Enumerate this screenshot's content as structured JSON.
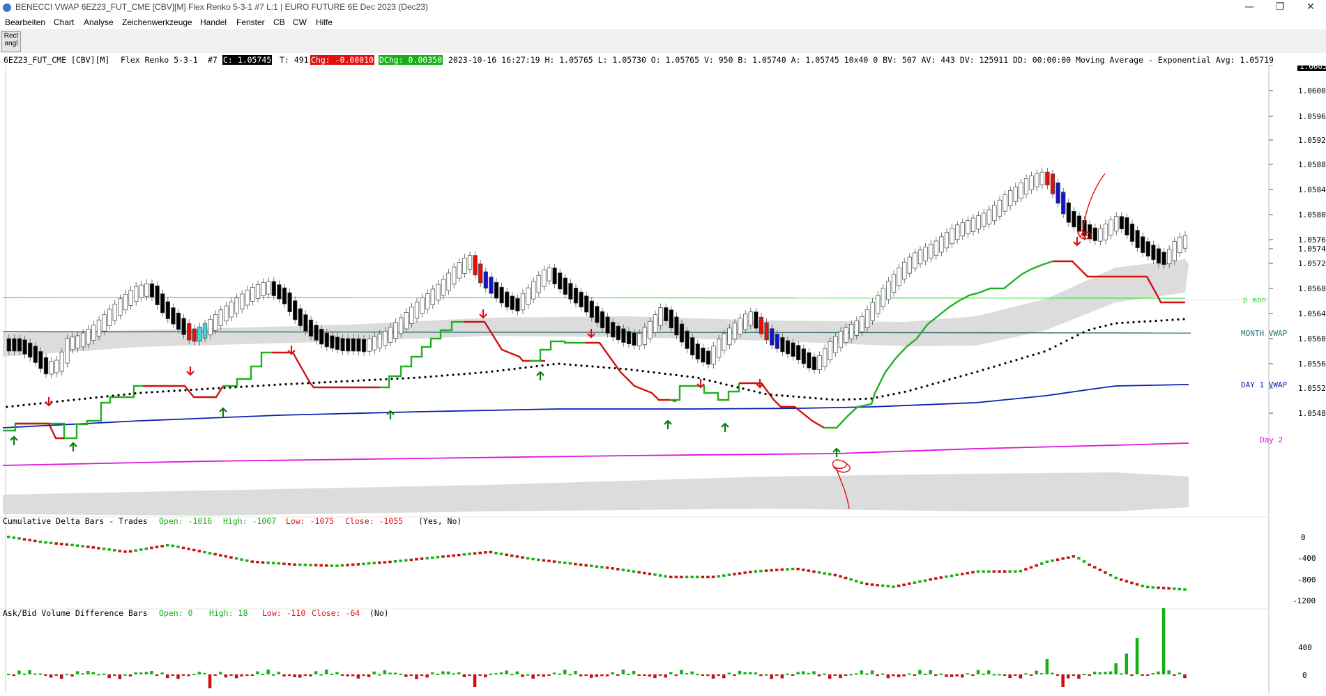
{
  "window": {
    "title": "BENECCI VWAP 6EZ23_FUT_CME [CBV][M]  Flex Renko 5-3-1  #7 L:1 | EURO FUTURE 6E Dec 2023 (Dec23)",
    "minimize_label": "—",
    "restore_label": "❐",
    "close_label": "✕"
  },
  "menu": [
    "Bearbeiten",
    "Chart",
    "Analyse",
    "Zeichenwerkzeuge",
    "Handel",
    "Fenster",
    "CB",
    "CW",
    "Hilfe"
  ],
  "toolbar": {
    "rect_button_label": "Rect\nangl"
  },
  "infobar": {
    "symbol": "6EZ23_FUT_CME [CBV][M]",
    "bar_type": "Flex Renko 5-3-1",
    "number": "#7",
    "close": "C: 1.05745",
    "ticks": "T: 491",
    "chg": "Chg: -0.00010",
    "dchg": "DChg: 0.00350",
    "details": "2023-10-16 16:27:19 H: 1.05765 L: 1.05730 O: 1.05765 V: 950 B: 1.05740 A: 1.05745 10x40 0 BV: 507 AV: 443 DV: 125911 DD: 00:00:00 Moving Average - Exponential  Avg: 1.05719"
  },
  "price_axis": {
    "current_price_label": "1.0605",
    "ticks": [
      "1.0604",
      "1.0600",
      "1.0596",
      "1.0592",
      "1.0588",
      "1.0584",
      "1.0580",
      "1.0576",
      "1.0574",
      "1.0572",
      "1.0568",
      "1.0564",
      "1.0560",
      "1.0556",
      "1.0552",
      "1.0548"
    ]
  },
  "labels": {
    "p_mon": "p mon",
    "month_vwap": "MONTH VWAP",
    "day1_vwap": "DAY 1 VWAP",
    "day2": "Day 2"
  },
  "colors": {
    "up_line": "#22b022",
    "down_line": "#d01010",
    "vwap_day1": "#0a1fb4",
    "vwap_day2": "#e010e0",
    "month_vwap": "#2a6e6e",
    "p_mon": "#40e040",
    "band": "#dcdcdc"
  },
  "cum_delta": {
    "title": "Cumulative Delta Bars - Trades",
    "open": "Open: -1016",
    "high": "High: -1007",
    "low": "Low: -1075",
    "close": "Close: -1055",
    "params": "(Yes, No)",
    "axis": [
      "0",
      "-400",
      "-800",
      "-1200"
    ]
  },
  "askbid": {
    "title": "Ask/Bid Volume Difference Bars",
    "open": "Open: 0",
    "high": "High: 18",
    "low": "Low: -110",
    "close": "Close: -64",
    "params": "(No)",
    "axis": [
      "400",
      "0"
    ]
  }
}
